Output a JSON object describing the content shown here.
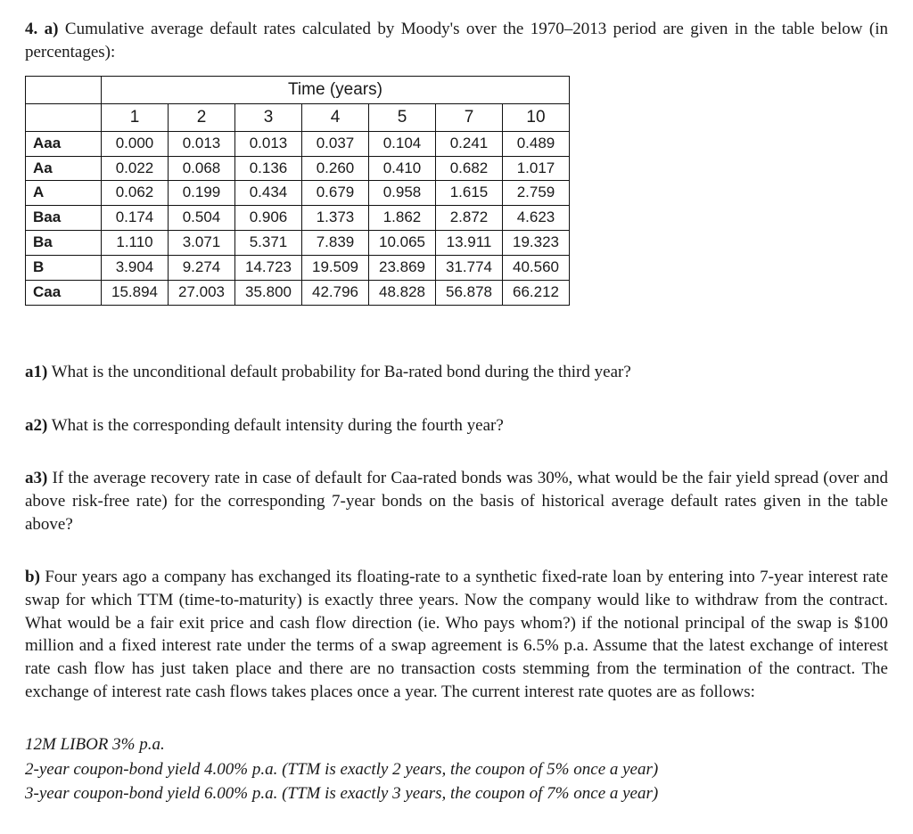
{
  "intro": {
    "label": "4. a)",
    "text": " Cumulative average default rates calculated by Moody's over the 1970–2013 period are given in the table below (in percentages):"
  },
  "table": {
    "time_header": "Time (years)",
    "year_headers": [
      "1",
      "2",
      "3",
      "4",
      "5",
      "7",
      "10"
    ],
    "rows": [
      {
        "rating": "Aaa",
        "vals": [
          "0.000",
          "0.013",
          "0.013",
          "0.037",
          "0.104",
          "0.241",
          "0.489"
        ]
      },
      {
        "rating": "Aa",
        "vals": [
          "0.022",
          "0.068",
          "0.136",
          "0.260",
          "0.410",
          "0.682",
          "1.017"
        ]
      },
      {
        "rating": "A",
        "vals": [
          "0.062",
          "0.199",
          "0.434",
          "0.679",
          "0.958",
          "1.615",
          "2.759"
        ]
      },
      {
        "rating": "Baa",
        "vals": [
          "0.174",
          "0.504",
          "0.906",
          "1.373",
          "1.862",
          "2.872",
          "4.623"
        ]
      },
      {
        "rating": "Ba",
        "vals": [
          "1.110",
          "3.071",
          "5.371",
          "7.839",
          "10.065",
          "13.911",
          "19.323"
        ]
      },
      {
        "rating": "B",
        "vals": [
          "3.904",
          "9.274",
          "14.723",
          "19.509",
          "23.869",
          "31.774",
          "40.560"
        ]
      },
      {
        "rating": "Caa",
        "vals": [
          "15.894",
          "27.003",
          "35.800",
          "42.796",
          "48.828",
          "56.878",
          "66.212"
        ]
      }
    ]
  },
  "questions": {
    "a1_label": "a1)",
    "a1_text": " What is the unconditional default probability for Ba-rated bond during the third year?",
    "a2_label": "a2)",
    "a2_text": " What is the corresponding default intensity during the fourth year?",
    "a3_label": "a3)",
    "a3_text": " If the average recovery rate in case of default for Caa-rated bonds was 30%, what would be the fair yield spread (over and above risk-free rate) for the corresponding 7-year bonds on the basis of historical average default rates given in the table above?",
    "b_label": "b)",
    "b_text": " Four years ago a company has exchanged its floating-rate to a synthetic fixed-rate loan by entering into 7-year interest rate swap for which TTM (time-to-maturity) is exactly three years. Now the company would like to withdraw from the contract. What would be a fair exit price and cash flow direction (ie. Who pays whom?) if the notional principal of the swap is $100 million and a fixed interest rate under the terms of a swap agreement is 6.5% p.a. Assume that the latest exchange of interest rate cash flow has just taken place and there are no transaction costs stemming from the termination of the contract. The exchange of interest rate cash flows takes places once a year. The current interest rate quotes are as follows:"
  },
  "quotes": {
    "line1": "12M LIBOR 3% p.a.",
    "line2": "2-year coupon-bond yield 4.00% p.a. (TTM is exactly 2 years, the coupon of 5% once a year)",
    "line3": "3-year coupon-bond yield 6.00% p.a. (TTM is exactly 3 years, the coupon of 7% once a year)"
  }
}
